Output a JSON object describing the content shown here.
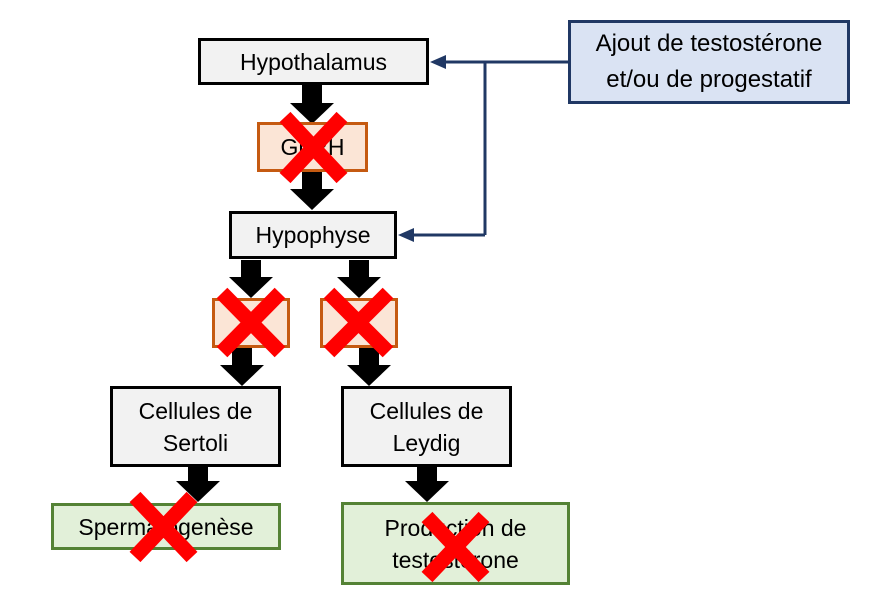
{
  "nodes": {
    "hypothalamus": "Hypothalamus",
    "gnrh": "GnRH",
    "hypophyse": "Hypophyse",
    "hormone_left": "",
    "hormone_right": "",
    "sertoli_line1": "Cellules de",
    "sertoli_line2": "Sertoli",
    "leydig_line1": "Cellules de",
    "leydig_line2": "Leydig",
    "spermatogenese": "Spermatogenèse",
    "production_line1": "Production de",
    "production_line2": "testostérone",
    "treatment_line1": "Ajout de testostérone",
    "treatment_line2": "et/ou de progestatif"
  },
  "colors": {
    "arrow": "#000000",
    "feedback": "#203864",
    "cross": "#ff0000"
  }
}
